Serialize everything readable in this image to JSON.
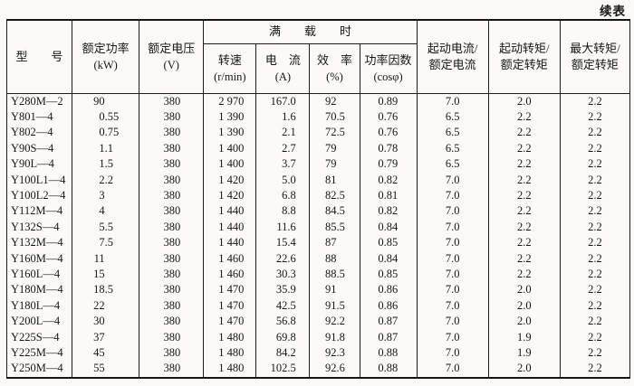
{
  "page": {
    "continued_label": "续表"
  },
  "table": {
    "header": {
      "model": "型　　号",
      "rated_power": [
        "额定功率",
        "(kW)"
      ],
      "rated_voltage": [
        "额定电压",
        "(V)"
      ],
      "full_load": "满　　载　　时",
      "speed": [
        "转速",
        "(r/min)"
      ],
      "current": [
        "电　流",
        "(A)"
      ],
      "efficiency": [
        "效　率",
        "(%)"
      ],
      "power_factor": [
        "功率因数",
        "(cosφ)"
      ],
      "start_current_ratio": [
        "起动电流/",
        "额定电流"
      ],
      "start_torque_ratio": [
        "起动转矩/",
        "额定转矩"
      ],
      "max_torque_ratio": [
        "最大转矩/",
        "额定转矩"
      ]
    },
    "columns": [
      "model",
      "rated-power-kw",
      "rated-voltage-v",
      "speed-rpm",
      "current-a",
      "efficiency-pct",
      "power-factor",
      "start-current-ratio",
      "start-torque-ratio",
      "max-torque-ratio"
    ],
    "rows": [
      [
        "Y280M—2",
        "90",
        "380",
        "2 970",
        "167.0",
        "92",
        "0.89",
        "7.0",
        "2.0",
        "2.2"
      ],
      [
        "Y801—4",
        "0.55",
        "380",
        "1 390",
        "1.6",
        "70.5",
        "0.76",
        "6.5",
        "2.2",
        "2.2"
      ],
      [
        "Y802—4",
        "0.75",
        "380",
        "1 390",
        "2.1",
        "72.5",
        "0.76",
        "6.5",
        "2.2",
        "2.2"
      ],
      [
        "Y90S—4",
        "1.1",
        "380",
        "1 400",
        "2.7",
        "79",
        "0.78",
        "6.5",
        "2.2",
        "2.2"
      ],
      [
        "Y90L—4",
        "1.5",
        "380",
        "1 400",
        "3.7",
        "79",
        "0.79",
        "6.5",
        "2.2",
        "2.2"
      ],
      [
        "Y100L1—4",
        "2.2",
        "380",
        "1 420",
        "5.0",
        "81",
        "0.82",
        "7.0",
        "2.2",
        "2.2"
      ],
      [
        "Y100L2—4",
        "3",
        "380",
        "1 420",
        "6.8",
        "82.5",
        "0.81",
        "7.0",
        "2.2",
        "2.2"
      ],
      [
        "Y112M—4",
        "4",
        "380",
        "1 440",
        "8.8",
        "84.5",
        "0.82",
        "7.0",
        "2.2",
        "2.2"
      ],
      [
        "Y132S—4",
        "5.5",
        "380",
        "1 440",
        "11.6",
        "85.5",
        "0.84",
        "7.0",
        "2.2",
        "2.2"
      ],
      [
        "Y132M—4",
        "7.5",
        "380",
        "1 440",
        "15.4",
        "87",
        "0.85",
        "7.0",
        "2.2",
        "2.2"
      ],
      [
        "Y160M—4",
        "11",
        "380",
        "1 460",
        "22.6",
        "88",
        "0.84",
        "7.0",
        "2.2",
        "2.2"
      ],
      [
        "Y160L—4",
        "15",
        "380",
        "1 460",
        "30.3",
        "88.5",
        "0.85",
        "7.0",
        "2.2",
        "2.2"
      ],
      [
        "Y180M—4",
        "18.5",
        "380",
        "1 470",
        "35.9",
        "91",
        "0.86",
        "7.0",
        "2.0",
        "2.2"
      ],
      [
        "Y180L—4",
        "22",
        "380",
        "1 470",
        "42.5",
        "91.5",
        "0.86",
        "7.0",
        "2.0",
        "2.2"
      ],
      [
        "Y200L—4",
        "30",
        "380",
        "1 470",
        "56.8",
        "92.2",
        "0.87",
        "7.0",
        "2.0",
        "2.2"
      ],
      [
        "Y225S—4",
        "37",
        "380",
        "1 480",
        "69.8",
        "91.8",
        "0.87",
        "7.0",
        "1.9",
        "2.2"
      ],
      [
        "Y225M—4",
        "45",
        "380",
        "1 480",
        "84.2",
        "92.3",
        "0.88",
        "7.0",
        "1.9",
        "2.2"
      ],
      [
        "Y250M—4",
        "55",
        "380",
        "1 480",
        "102.5",
        "92.6",
        "0.88",
        "7.0",
        "2.0",
        "2.2"
      ]
    ]
  }
}
